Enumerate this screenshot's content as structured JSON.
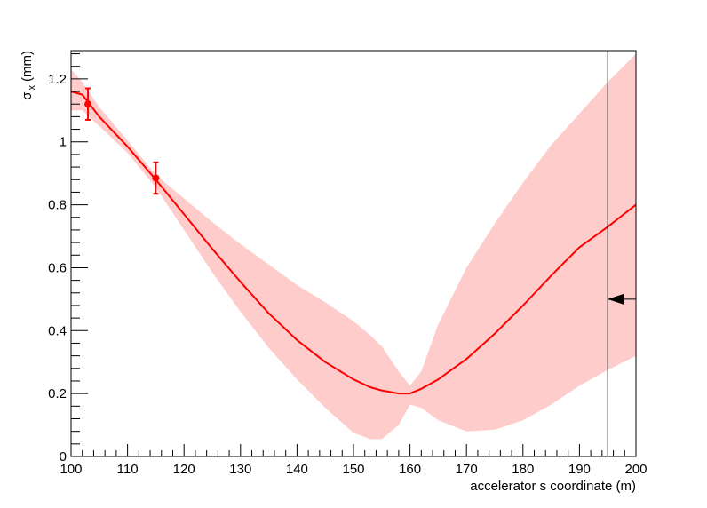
{
  "chart_data": {
    "type": "line",
    "xlabel": "accelerator s coordinate (m)",
    "ylabel": {
      "main": "σ",
      "sub": "x",
      "unit": "(mm)"
    },
    "xlim": [
      100,
      200
    ],
    "ylim": [
      0,
      1.29
    ],
    "x_ticks": [
      "100",
      "110",
      "120",
      "130",
      "140",
      "150",
      "160",
      "170",
      "180",
      "190",
      "200"
    ],
    "y_ticks": [
      "0",
      "0.2",
      "0.4",
      "0.6",
      "0.8",
      "1",
      "1.2"
    ],
    "grid": false,
    "colors": {
      "line": "#ff0000",
      "band": "#ffcccc",
      "marker": "#ff0000",
      "axis": "#000000"
    },
    "series": [
      {
        "kind": "line-with-band",
        "points": [
          {
            "x": 100,
            "y": 1.16,
            "lo": 1.1,
            "hi": 1.23
          },
          {
            "x": 102,
            "y": 1.15,
            "lo": 1.1,
            "hi": 1.19
          },
          {
            "x": 105,
            "y": 1.08,
            "lo": 1.05,
            "hi": 1.11
          },
          {
            "x": 110,
            "y": 0.985,
            "lo": 0.965,
            "hi": 1.005
          },
          {
            "x": 115,
            "y": 0.88,
            "lo": 0.855,
            "hi": 0.895
          },
          {
            "x": 120,
            "y": 0.77,
            "lo": 0.72,
            "hi": 0.82
          },
          {
            "x": 125,
            "y": 0.66,
            "lo": 0.585,
            "hi": 0.745
          },
          {
            "x": 130,
            "y": 0.555,
            "lo": 0.46,
            "hi": 0.675
          },
          {
            "x": 135,
            "y": 0.455,
            "lo": 0.345,
            "hi": 0.61
          },
          {
            "x": 140,
            "y": 0.37,
            "lo": 0.245,
            "hi": 0.545
          },
          {
            "x": 145,
            "y": 0.3,
            "lo": 0.155,
            "hi": 0.49
          },
          {
            "x": 150,
            "y": 0.245,
            "lo": 0.075,
            "hi": 0.43
          },
          {
            "x": 153,
            "y": 0.22,
            "lo": 0.055,
            "hi": 0.385
          },
          {
            "x": 155,
            "y": 0.21,
            "lo": 0.055,
            "hi": 0.35
          },
          {
            "x": 158,
            "y": 0.2,
            "lo": 0.1,
            "hi": 0.27
          },
          {
            "x": 160,
            "y": 0.2,
            "lo": 0.165,
            "hi": 0.225
          },
          {
            "x": 162,
            "y": 0.215,
            "lo": 0.155,
            "hi": 0.27
          },
          {
            "x": 165,
            "y": 0.245,
            "lo": 0.115,
            "hi": 0.42
          },
          {
            "x": 170,
            "y": 0.31,
            "lo": 0.08,
            "hi": 0.6
          },
          {
            "x": 175,
            "y": 0.39,
            "lo": 0.085,
            "hi": 0.74
          },
          {
            "x": 180,
            "y": 0.48,
            "lo": 0.115,
            "hi": 0.87
          },
          {
            "x": 185,
            "y": 0.575,
            "lo": 0.165,
            "hi": 0.99
          },
          {
            "x": 190,
            "y": 0.665,
            "lo": 0.225,
            "hi": 1.09
          },
          {
            "x": 195,
            "y": 0.73,
            "lo": 0.275,
            "hi": 1.19
          },
          {
            "x": 200,
            "y": 0.8,
            "lo": 0.32,
            "hi": 1.28
          }
        ]
      },
      {
        "kind": "points-with-error",
        "points": [
          {
            "x": 103,
            "y": 1.12,
            "err": 0.05
          },
          {
            "x": 115,
            "y": 0.885,
            "err": 0.05
          }
        ]
      }
    ],
    "annotations": {
      "vertical_line_x": 195,
      "arrow": {
        "y": 0.5,
        "direction": "left"
      }
    }
  }
}
